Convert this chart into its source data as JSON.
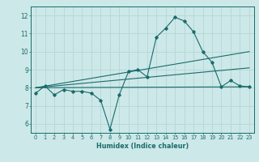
{
  "title": "",
  "xlabel": "Humidex (Indice chaleur)",
  "ylabel": "",
  "bg_color": "#cde8e8",
  "line_color": "#1a6b6b",
  "grid_color": "#b8d8d8",
  "xlim": [
    -0.5,
    23.5
  ],
  "ylim": [
    5.5,
    12.5
  ],
  "xticks": [
    0,
    1,
    2,
    3,
    4,
    5,
    6,
    7,
    8,
    9,
    10,
    11,
    12,
    13,
    14,
    15,
    16,
    17,
    18,
    19,
    20,
    21,
    22,
    23
  ],
  "yticks": [
    6,
    7,
    8,
    9,
    10,
    11,
    12
  ],
  "main_x": [
    0,
    1,
    2,
    3,
    4,
    5,
    6,
    7,
    8,
    9,
    10,
    11,
    12,
    13,
    14,
    15,
    16,
    17,
    18,
    19,
    20,
    21,
    22,
    23
  ],
  "main_y": [
    7.7,
    8.1,
    7.6,
    7.9,
    7.8,
    7.8,
    7.7,
    7.3,
    5.7,
    7.6,
    8.9,
    9.0,
    8.6,
    10.8,
    11.3,
    11.9,
    11.7,
    11.1,
    10.0,
    9.4,
    8.05,
    8.4,
    8.1,
    8.05
  ],
  "line1_x": [
    0,
    23
  ],
  "line1_y": [
    8.0,
    8.05
  ],
  "line2_x": [
    0,
    23
  ],
  "line2_y": [
    8.0,
    10.0
  ],
  "line3_x": [
    0,
    23
  ],
  "line3_y": [
    8.0,
    9.1
  ]
}
